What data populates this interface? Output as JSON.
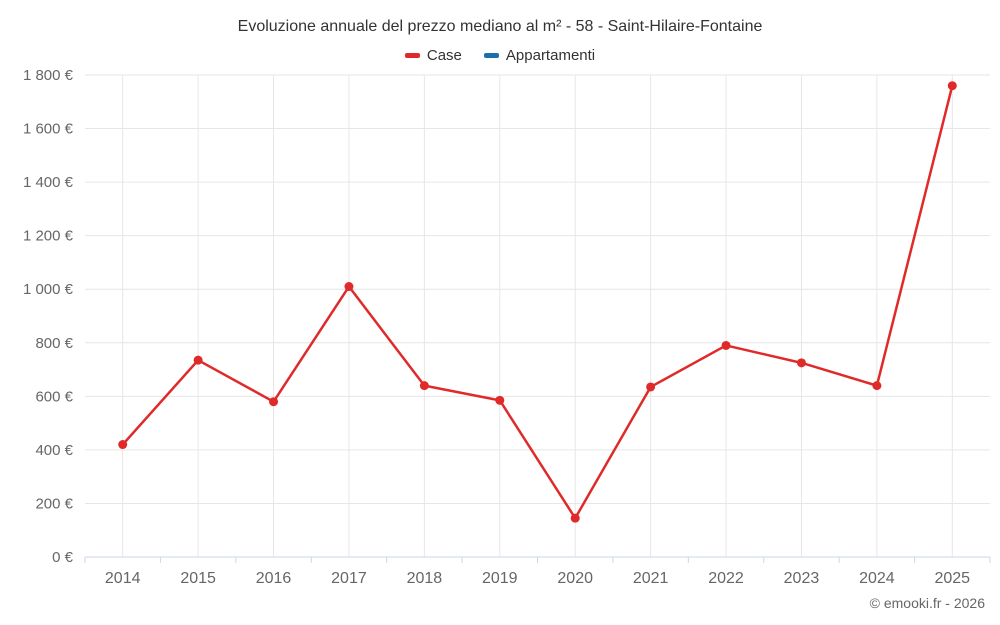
{
  "header": {
    "title": "Evoluzione annuale del prezzo mediano al m² - 58 - Saint-Hilaire-Fontaine"
  },
  "legend": {
    "items": [
      {
        "label": "Case",
        "color": "#e02a2a"
      },
      {
        "label": "Appartamenti",
        "color": "#1a6fad"
      }
    ]
  },
  "footer": {
    "copyright": "© emooki.fr - 2026"
  },
  "chart_data": {
    "type": "line",
    "title": "Evoluzione annuale del prezzo mediano al m² - 58 - Saint-Hilaire-Fontaine",
    "xlabel": "",
    "ylabel": "",
    "categories": [
      "2014",
      "2015",
      "2016",
      "2017",
      "2018",
      "2019",
      "2020",
      "2021",
      "2022",
      "2023",
      "2024",
      "2025"
    ],
    "series": [
      {
        "name": "Case",
        "color": "#e02a2a",
        "values": [
          420,
          735,
          580,
          1010,
          640,
          585,
          145,
          635,
          790,
          725,
          640,
          1760
        ]
      },
      {
        "name": "Appartamenti",
        "color": "#1a6fad",
        "values": []
      }
    ],
    "ylim": [
      0,
      1800
    ],
    "ytick_step": 200,
    "yticks": [
      {
        "value": 0,
        "label": "0 €"
      },
      {
        "value": 200,
        "label": "200 €"
      },
      {
        "value": 400,
        "label": "400 €"
      },
      {
        "value": 600,
        "label": "600 €"
      },
      {
        "value": 800,
        "label": "800 €"
      },
      {
        "value": 1000,
        "label": "1 000 €"
      },
      {
        "value": 1200,
        "label": "1 200 €"
      },
      {
        "value": 1400,
        "label": "1 400 €"
      },
      {
        "value": 1600,
        "label": "1 600 €"
      },
      {
        "value": 1800,
        "label": "1 800 €"
      }
    ],
    "grid": true,
    "legend_position": "top"
  }
}
